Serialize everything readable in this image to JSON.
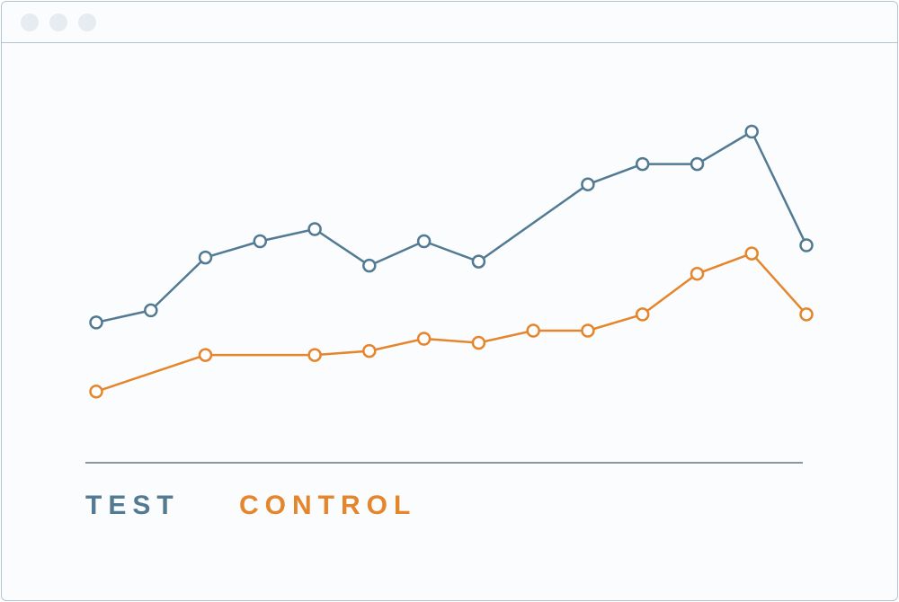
{
  "window": {
    "controls": [
      "close",
      "minimize",
      "maximize"
    ]
  },
  "chart_data": {
    "type": "line",
    "x": [
      1,
      2,
      3,
      4,
      5,
      6,
      7,
      8,
      9,
      10,
      11,
      12,
      13,
      14
    ],
    "ylim": [
      0,
      100
    ],
    "grid": false,
    "legend_position": "bottom-left",
    "series": [
      {
        "name": "TEST",
        "color": "#527a93",
        "points": [
          [
            1,
            29
          ],
          [
            2,
            32
          ],
          [
            3,
            45
          ],
          [
            4,
            49
          ],
          [
            5,
            52
          ],
          [
            6,
            43
          ],
          [
            7,
            49
          ],
          [
            8,
            44
          ],
          [
            10,
            63
          ],
          [
            11,
            68
          ],
          [
            12,
            68
          ],
          [
            13,
            76
          ],
          [
            14,
            48
          ]
        ]
      },
      {
        "name": "CONTROL",
        "color": "#e5852c",
        "points": [
          [
            1,
            12
          ],
          [
            3,
            21
          ],
          [
            5,
            21
          ],
          [
            6,
            22
          ],
          [
            7,
            25
          ],
          [
            8,
            24
          ],
          [
            9,
            27
          ],
          [
            10,
            27
          ],
          [
            11,
            31
          ],
          [
            12,
            41
          ],
          [
            13,
            46
          ],
          [
            14,
            31
          ]
        ]
      }
    ]
  }
}
